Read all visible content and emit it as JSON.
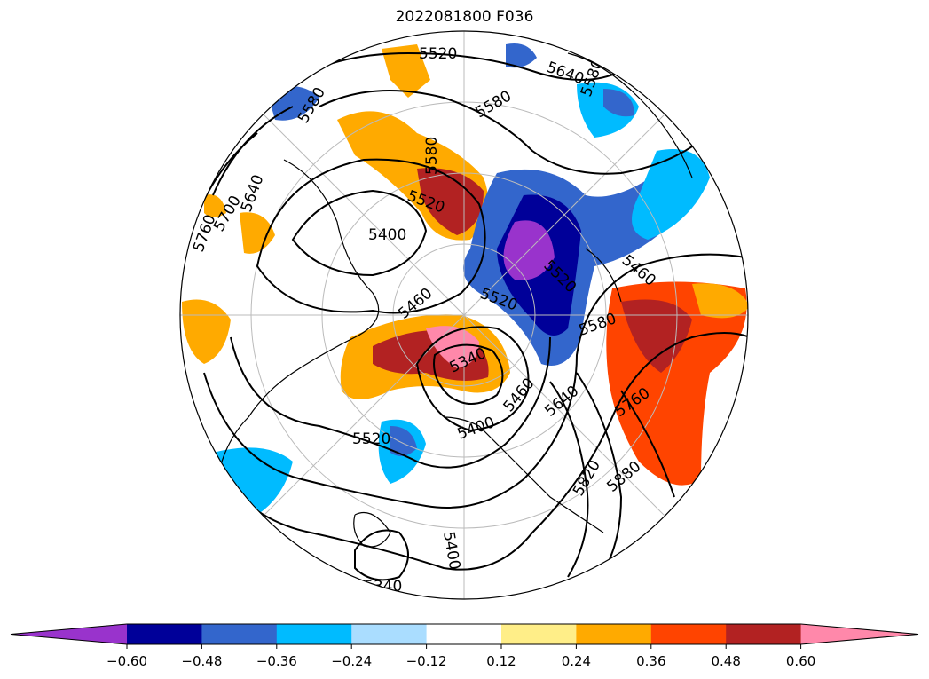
{
  "title": "2022081800 F036",
  "colorbar": {
    "colors": [
      "#9933cc",
      "#000099",
      "#3366cc",
      "#00bbff",
      "#aaddff",
      "#ffffff",
      "#ffee88",
      "#ffaa00",
      "#ff4400",
      "#b22222",
      "#ff88aa"
    ],
    "ticks": [
      "−0.60",
      "−0.48",
      "−0.36",
      "−0.24",
      "−0.12",
      "0.12",
      "0.24",
      "0.36",
      "0.48",
      "0.60"
    ],
    "extend": "both"
  },
  "contour_labels": [
    "5520",
    "5640",
    "5580",
    "5580",
    "5580",
    "5580",
    "5640",
    "5520",
    "5760",
    "5700",
    "5400",
    "5460",
    "5520",
    "5520",
    "5460",
    "5580",
    "5340",
    "5460",
    "5640",
    "5760",
    "5520",
    "5400",
    "5880",
    "5820",
    "5400",
    "5340"
  ]
}
